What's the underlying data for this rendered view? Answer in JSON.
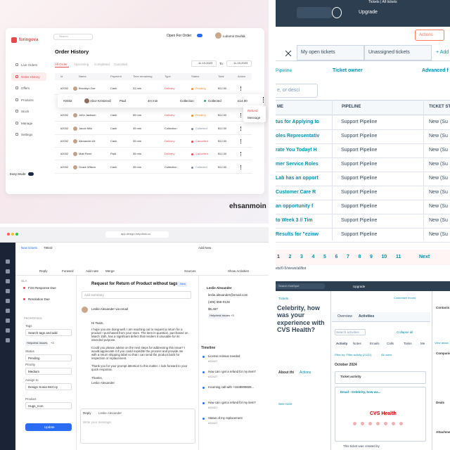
{
  "order_app": {
    "brand": "foringova",
    "search": "Search",
    "open_for_order": "Open For Order",
    "user": "Lubomir Dvořák",
    "menu": [
      "Live Orders",
      "Order History",
      "Offers",
      "Products",
      "Stock",
      "Manage",
      "Settings"
    ],
    "easy_mode": "Easy Mode",
    "title": "Order History",
    "tabs": [
      "All Order",
      "Upcoming",
      "Completed",
      "Canceled"
    ],
    "date_from": "11-10-2023",
    "date_to_label": "To",
    "date_to": "11-10-2023",
    "columns": [
      "Id",
      "Name",
      "Payment",
      "Time remaining",
      "Type",
      "Status",
      "Total",
      "Action"
    ],
    "rows": [
      [
        "#2032",
        "Brooklyn Zoe",
        "Cash",
        "31 min",
        "Delivery",
        "Pending",
        "$12.00"
      ],
      [
        "#2032",
        "John Jackson",
        "Cash",
        "55 min",
        "Delivery",
        "Pending",
        "$12.00"
      ],
      [
        "#2032",
        "Jacob Milo",
        "Cash",
        "35 min",
        "Collection",
        "Collected",
        "$12.00"
      ],
      [
        "#2032",
        "Alexander Ali",
        "Cash",
        "35 min",
        "Delivery",
        "Cancelled",
        "$12.00"
      ],
      [
        "#2032",
        "Matt Rene",
        "Paid",
        "35 min",
        "Delivery",
        "Cancelled",
        "$12.00"
      ],
      [
        "#2032",
        "Grace Wilson",
        "Cash",
        "35 min",
        "Collection",
        "Collected",
        "$12.00"
      ]
    ],
    "status_colors": [
      "#f28c28",
      "#f28c28",
      "#7a8b99",
      "#e5484d",
      "#e5484d",
      "#7a8b99"
    ],
    "highlight_row": [
      "#2032",
      "Alice Kristzevič",
      "Paid",
      "4H min",
      "Collection",
      "Collected",
      "£14.00"
    ],
    "row_menu": [
      "Refund",
      "Message"
    ],
    "watermark": "ehsanmoin"
  },
  "tickets_app": {
    "tab_title": "Tickets | All tickets",
    "upgrade": "Upgrade",
    "actions": "Actions",
    "view_tabs": [
      "My open tickets",
      "Unassigned tickets"
    ],
    "add": "+ Add",
    "filters": [
      "Pipeline",
      "Ticket owner",
      "Advanced f"
    ],
    "search": "e, or desci",
    "columns": [
      "ME",
      "PIPELINE",
      "TICKET ST"
    ],
    "rows": [
      [
        "tus for Applying to",
        "Support Pipeline",
        "New (Su"
      ],
      [
        "oles Representativ",
        "Support Pipeline",
        "New (Su"
      ],
      [
        "rate You Today! H",
        "Support Pipeline",
        "New (Su"
      ],
      [
        "mer Service Roles",
        "Support Pipeline",
        "New (Su"
      ],
      [
        "Lab has an opport",
        "Support Pipeline",
        "New (Su"
      ],
      [
        "Customer Care R",
        "Support Pipeline",
        "New (Su"
      ],
      [
        "an opportunity f",
        "Support Pipeline",
        "New (Su"
      ],
      [
        "to Week 3 // Tim",
        "Support Pipeline",
        "New (Su"
      ],
      [
        "Results for \"ezinw",
        "Support Pipeline",
        "New (Su"
      ]
    ],
    "pages": [
      "1",
      "2",
      "3",
      "4",
      "5",
      "6",
      "7",
      "8",
      "9",
      "10",
      "11"
    ],
    "next": "Next",
    "url": "ets/0-5/views/all/list"
  },
  "helpdesk_app": {
    "url": "app.design-helpdesk.co",
    "breadcrumb": [
      "New tickets",
      "78643"
    ],
    "toolbar": [
      "Reply",
      "Forward",
      "Add note",
      "Merge",
      "Sources",
      "Add New",
      "Show Activities"
    ],
    "sla": [
      "SLA",
      "First Response Due",
      "Resolution Due"
    ],
    "properties": "PROPERTIES",
    "fields": [
      [
        "Tags",
        "Search tags and add"
      ],
      [
        "Status",
        "Pending"
      ],
      [
        "Priority",
        "Medium"
      ],
      [
        "Assign to",
        "Design Sonia McCoy"
      ],
      [
        "Product",
        "Hugs_Icon"
      ]
    ],
    "tag": "Helpdesk Issues",
    "tag_more": "+3",
    "update": "Update",
    "ticket_title": "Request for Return of Product without tags",
    "ticket_badge": "New",
    "add_summary": "Add summary",
    "sender": "Leslie Alexander via email",
    "greeting": "Hi Team,",
    "body": [
      "I hope you are doing well. I am reaching out to request a return for a product I purchased from your store. The item in question, purchased on March 15th, has a significant defect that renders it unusable for its intended purpose.",
      "Could you please advise on the next steps for addressing this issue? I would appreciate it if you could expedite the process and provide me with a return shipping label so that I can send the product back for inspection or replacement.",
      "Thank you for your prompt attention to this matter. I look forward to your quick response."
    ],
    "signoff": "Thanks,",
    "signature": "Leslie Alexander",
    "reply_label": "Reply",
    "reply_to": "Leslie Alexander",
    "reply_placeholder": "Write your message",
    "contact": [
      "Leslie Alexander",
      "leslie.alexander@email.com",
      "(405) 555-0128",
      "$5,467"
    ],
    "contact_tag": "Helpdesk issues",
    "contact_tag_more": "+3",
    "timeline": "Timeline",
    "timeline_items": [
      [
        "License reissue needed",
        "#32427"
      ],
      [
        "How can i get a refund for my item?",
        "#32427"
      ],
      [
        "Incoming call with +1648909828...",
        ""
      ],
      [
        "How can i get a refund for my item?",
        "#32427"
      ],
      [
        "Status of my replacement",
        "#32427"
      ]
    ]
  },
  "ticket_record": {
    "tab_title": "Celebrity, how was your experience with CVS Health?",
    "search": "Search HubSpot",
    "upgrade": "Upgrade",
    "back": "Tickets",
    "customize": "Customize record",
    "title": "Celebrity, how was your experience with CVS Health?",
    "about": "About thi",
    "actions": "Actions",
    "see_more": "See more",
    "tabs": [
      "Overview",
      "Activities"
    ],
    "search_activities": "Search activities",
    "collapse": "Collapse all",
    "activity_tabs": [
      "Activity",
      "Notes",
      "Emails",
      "Calls",
      "Tasks",
      "Me"
    ],
    "filter": "Filter by: Filter activity (21/21)",
    "all_users": "All users",
    "month": "October 2024",
    "items": [
      "Ticket activity",
      "Email - Celebrity, how wa..."
    ],
    "brand": "CVS Health",
    "created": "This ticket was created by",
    "side": [
      "Contacts",
      "Companies",
      "Deals",
      "Attachments"
    ],
    "side_more": "View assoc"
  }
}
